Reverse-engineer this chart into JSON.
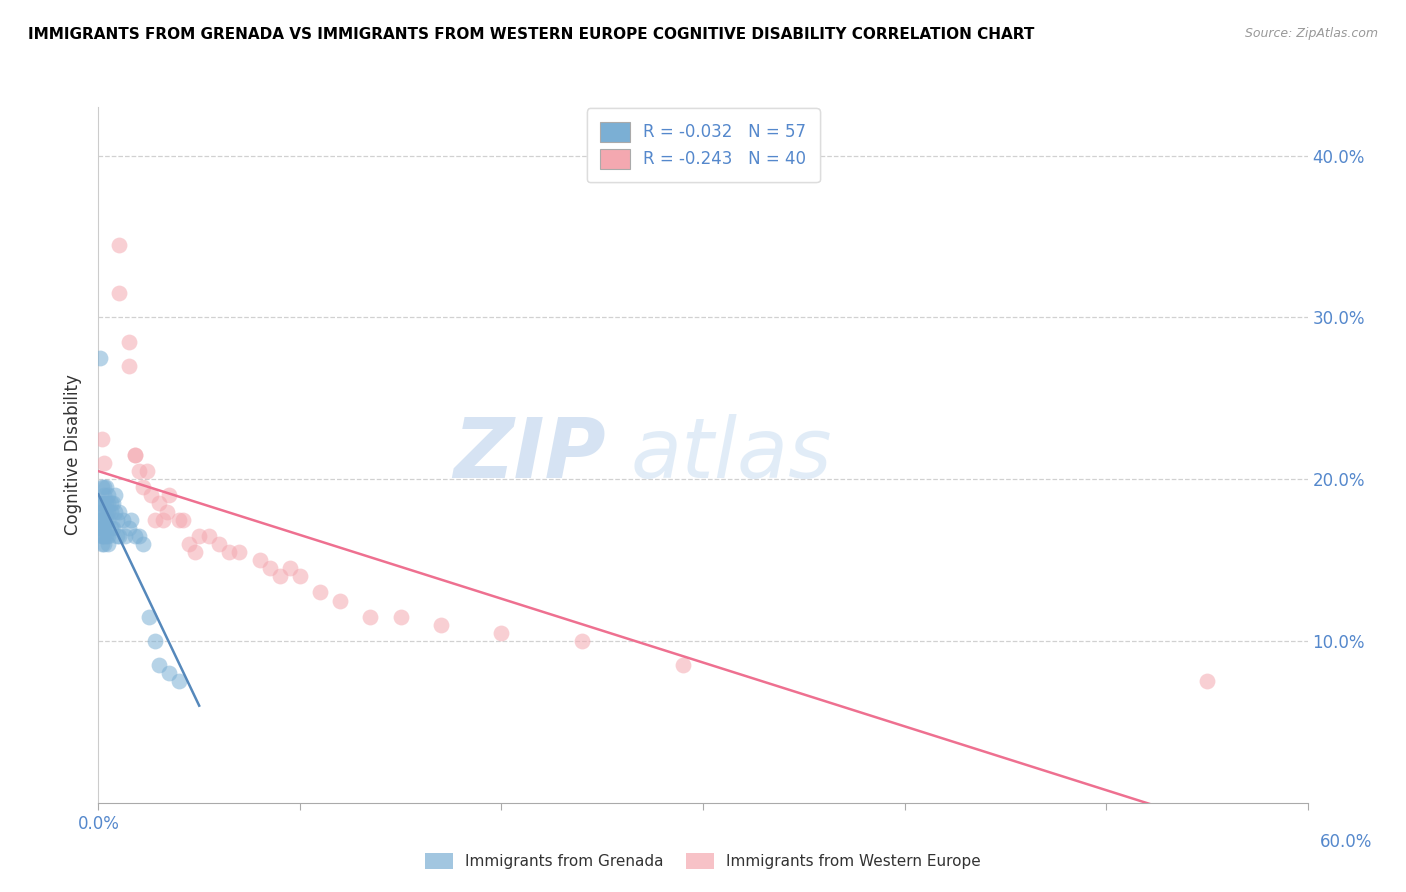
{
  "title": "IMMIGRANTS FROM GRENADA VS IMMIGRANTS FROM WESTERN EUROPE COGNITIVE DISABILITY CORRELATION CHART",
  "source": "Source: ZipAtlas.com",
  "ylabel": "Cognitive Disability",
  "xlim": [
    0.0,
    0.6
  ],
  "ylim": [
    0.0,
    0.43
  ],
  "legend_r1": "R = -0.032",
  "legend_n1": "N = 57",
  "legend_r2": "R = -0.243",
  "legend_n2": "N = 40",
  "series1_color": "#7BAFD4",
  "series2_color": "#F4A8B0",
  "trendline1_color": "#5588BB",
  "trendline2_color": "#EE7090",
  "watermark_zip": "ZIP",
  "watermark_atlas": "atlas",
  "series1_name": "Immigrants from Grenada",
  "series2_name": "Immigrants from Western Europe",
  "grenada_x": [
    0.001,
    0.001,
    0.001,
    0.001,
    0.001,
    0.002,
    0.002,
    0.002,
    0.002,
    0.002,
    0.002,
    0.002,
    0.002,
    0.002,
    0.002,
    0.003,
    0.003,
    0.003,
    0.003,
    0.003,
    0.003,
    0.003,
    0.003,
    0.004,
    0.004,
    0.004,
    0.004,
    0.004,
    0.005,
    0.005,
    0.005,
    0.005,
    0.005,
    0.005,
    0.006,
    0.006,
    0.006,
    0.007,
    0.007,
    0.008,
    0.008,
    0.009,
    0.009,
    0.01,
    0.01,
    0.012,
    0.013,
    0.015,
    0.016,
    0.018,
    0.02,
    0.022,
    0.025,
    0.028,
    0.03,
    0.035,
    0.04
  ],
  "grenada_y": [
    0.275,
    0.185,
    0.18,
    0.175,
    0.17,
    0.195,
    0.185,
    0.18,
    0.175,
    0.175,
    0.17,
    0.17,
    0.165,
    0.165,
    0.16,
    0.195,
    0.19,
    0.185,
    0.18,
    0.175,
    0.17,
    0.165,
    0.16,
    0.195,
    0.185,
    0.18,
    0.17,
    0.165,
    0.19,
    0.185,
    0.18,
    0.175,
    0.165,
    0.16,
    0.185,
    0.18,
    0.17,
    0.185,
    0.17,
    0.19,
    0.18,
    0.175,
    0.165,
    0.18,
    0.165,
    0.175,
    0.165,
    0.17,
    0.175,
    0.165,
    0.165,
    0.16,
    0.115,
    0.1,
    0.085,
    0.08,
    0.075
  ],
  "western_x": [
    0.002,
    0.003,
    0.01,
    0.01,
    0.015,
    0.015,
    0.018,
    0.018,
    0.02,
    0.022,
    0.024,
    0.026,
    0.028,
    0.03,
    0.032,
    0.034,
    0.035,
    0.04,
    0.042,
    0.045,
    0.048,
    0.05,
    0.055,
    0.06,
    0.065,
    0.07,
    0.08,
    0.085,
    0.09,
    0.095,
    0.1,
    0.11,
    0.12,
    0.135,
    0.15,
    0.17,
    0.2,
    0.24,
    0.29,
    0.55
  ],
  "western_y": [
    0.225,
    0.21,
    0.345,
    0.315,
    0.285,
    0.27,
    0.215,
    0.215,
    0.205,
    0.195,
    0.205,
    0.19,
    0.175,
    0.185,
    0.175,
    0.18,
    0.19,
    0.175,
    0.175,
    0.16,
    0.155,
    0.165,
    0.165,
    0.16,
    0.155,
    0.155,
    0.15,
    0.145,
    0.14,
    0.145,
    0.14,
    0.13,
    0.125,
    0.115,
    0.115,
    0.11,
    0.105,
    0.1,
    0.085,
    0.075
  ]
}
